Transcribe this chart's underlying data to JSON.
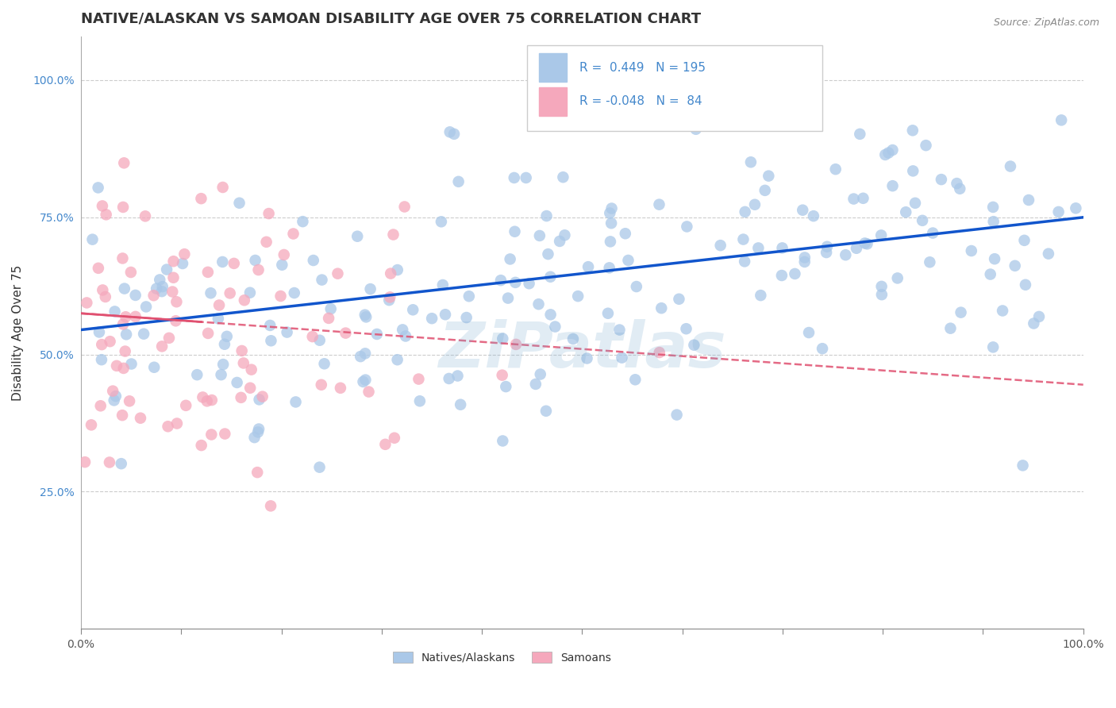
{
  "title": "NATIVE/ALASKAN VS SAMOAN DISABILITY AGE OVER 75 CORRELATION CHART",
  "source": "Source: ZipAtlas.com",
  "ylabel": "Disability Age Over 75",
  "xlim": [
    0.0,
    1.0
  ],
  "ylim": [
    0.0,
    1.08
  ],
  "xticks": [
    0.0,
    0.1,
    0.2,
    0.3,
    0.4,
    0.5,
    0.6,
    0.7,
    0.8,
    0.9,
    1.0
  ],
  "yticks": [
    0.25,
    0.5,
    0.75,
    1.0
  ],
  "xtick_labels": [
    "0.0%",
    "",
    "",
    "",
    "",
    "",
    "",
    "",
    "",
    "",
    "100.0%"
  ],
  "ytick_labels": [
    "25.0%",
    "50.0%",
    "75.0%",
    "100.0%"
  ],
  "blue_R": 0.449,
  "blue_N": 195,
  "pink_R": -0.048,
  "pink_N": 84,
  "blue_color": "#aac8e8",
  "pink_color": "#f5a8bc",
  "blue_line_color": "#1155cc",
  "pink_line_color": "#e05070",
  "watermark": "ZiPatlas",
  "legend_labels": [
    "Natives/Alaskans",
    "Samoans"
  ],
  "title_fontsize": 13,
  "axis_label_fontsize": 11,
  "tick_fontsize": 10,
  "legend_fontsize": 11,
  "blue_intercept": 0.545,
  "blue_slope": 0.205,
  "pink_intercept": 0.575,
  "pink_slope": -0.13
}
